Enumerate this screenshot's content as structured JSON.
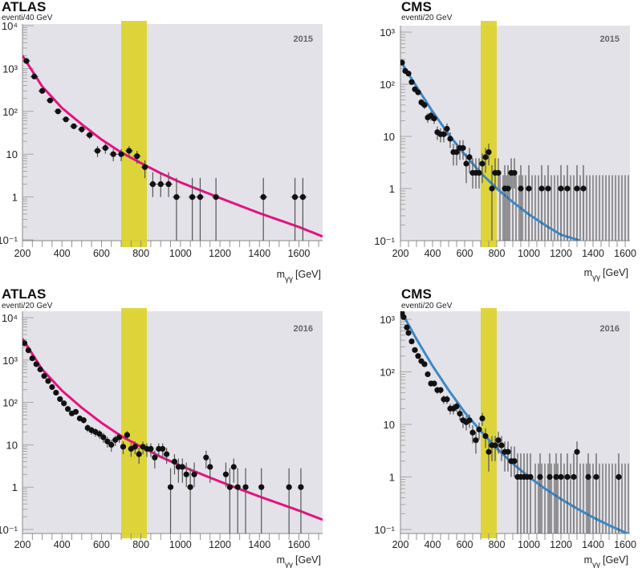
{
  "colors": {
    "plot_bg": "#e3e2e8",
    "signal_band": "#dcd32a",
    "atlas_fit": "#e5127f",
    "cms_fit": "#3a88c9",
    "points": "#111111",
    "error_bars": "#555555"
  },
  "chart_data": [
    {
      "type": "scatter",
      "experiment": "ATLAS",
      "title": "ATLAS",
      "subtitle": "eventi/40 GeV",
      "year_label": "2015",
      "xlabel": "m",
      "xlabel_sub": "γγ",
      "xlabel_unit": "[GeV]",
      "xlim": [
        200,
        1720
      ],
      "ylim": [
        0.1,
        10000
      ],
      "yscale": "log",
      "xticks": [
        200,
        400,
        600,
        800,
        1000,
        1200,
        1400,
        1600
      ],
      "xtick_labels": [
        "200",
        "400",
        "600",
        "800",
        "1000",
        "1200",
        "1400",
        "1600"
      ],
      "yticks": [
        0.1,
        1,
        10,
        100,
        1000,
        10000
      ],
      "ytick_labels": [
        "10⁻¹",
        "1",
        "10",
        "10²",
        "10³",
        "10⁴"
      ],
      "signal_band": [
        700,
        830
      ],
      "fit": {
        "name": "background fit",
        "color": "atlas_fit",
        "x": [
          200,
          300,
          400,
          500,
          600,
          700,
          800,
          900,
          1000,
          1200,
          1400,
          1600,
          1720
        ],
        "y": [
          2000,
          380,
          120,
          50,
          22,
          11,
          6.2,
          3.6,
          2.2,
          0.95,
          0.42,
          0.2,
          0.12
        ]
      },
      "points": {
        "x": [
          220,
          260,
          300,
          340,
          380,
          420,
          460,
          500,
          540,
          580,
          620,
          660,
          700,
          740,
          780,
          820,
          860,
          900,
          940,
          980,
          1060,
          1100,
          1180,
          1420,
          1580,
          1620
        ],
        "y": [
          1500,
          650,
          300,
          180,
          100,
          65,
          45,
          38,
          28,
          12,
          14,
          10,
          10,
          12,
          9,
          5,
          2,
          2,
          2,
          1,
          1,
          1,
          1,
          1,
          1,
          1
        ]
      }
    },
    {
      "type": "scatter",
      "experiment": "CMS",
      "title": "CMS",
      "subtitle": "eventi/20 GeV",
      "year_label": "2015",
      "xlabel": "m",
      "xlabel_sub": "γγ",
      "xlabel_unit": "[GeV]",
      "xlim": [
        200,
        1630
      ],
      "ylim": [
        0.1,
        1000
      ],
      "yscale": "log",
      "xticks": [
        200,
        400,
        600,
        800,
        1000,
        1200,
        1400,
        1600
      ],
      "xtick_labels": [
        "200",
        "400",
        "600",
        "800",
        "1000",
        "1200",
        "1400",
        "1600"
      ],
      "yticks": [
        0.1,
        1,
        10,
        100,
        1000
      ],
      "ytick_labels": [
        "10⁻¹",
        "1",
        "10",
        "10²",
        "10³"
      ],
      "signal_band": [
        700,
        800
      ],
      "fit": {
        "name": "background fit",
        "color": "cms_fit",
        "x": [
          200,
          300,
          400,
          500,
          600,
          700,
          800,
          900,
          1000,
          1100,
          1200,
          1320
        ],
        "y": [
          280,
          90,
          30,
          11,
          4.5,
          2.0,
          1.0,
          0.55,
          0.32,
          0.2,
          0.13,
          0.1
        ]
      },
      "points": {
        "x": [
          210,
          230,
          250,
          270,
          290,
          310,
          330,
          350,
          370,
          390,
          410,
          430,
          450,
          470,
          490,
          510,
          530,
          550,
          570,
          590,
          610,
          630,
          650,
          670,
          690,
          710,
          730,
          750,
          770,
          790,
          810,
          850,
          870,
          890,
          910,
          950,
          1000,
          1080,
          1120,
          1200,
          1240,
          1300,
          1340
        ],
        "y": [
          260,
          180,
          160,
          110,
          80,
          70,
          45,
          40,
          23,
          25,
          22,
          12,
          11,
          11,
          14,
          9,
          5,
          5,
          6,
          6,
          3,
          4,
          2,
          2,
          2,
          3,
          4,
          5,
          1,
          2,
          2,
          1,
          1,
          2,
          2,
          1,
          1,
          1,
          1,
          1,
          1,
          1,
          1
        ]
      }
    },
    {
      "type": "scatter",
      "experiment": "ATLAS",
      "title": "ATLAS",
      "subtitle": "eventi/20 GeV",
      "year_label": "2016",
      "xlabel": "m",
      "xlabel_sub": "γγ",
      "xlabel_unit": "[GeV]",
      "xlim": [
        200,
        1720
      ],
      "ylim": [
        0.1,
        10000
      ],
      "yscale": "log",
      "xticks": [
        200,
        400,
        600,
        800,
        1000,
        1200,
        1400,
        1600
      ],
      "xtick_labels": [
        "200",
        "400",
        "600",
        "800",
        "1000",
        "1200",
        "1400",
        "1600"
      ],
      "yticks": [
        0.1,
        1,
        10,
        100,
        1000,
        10000
      ],
      "ytick_labels": [
        "10⁻¹",
        "1",
        "10",
        "10²",
        "10³",
        "10⁴"
      ],
      "signal_band": [
        700,
        830
      ],
      "fit": {
        "name": "background fit",
        "color": "atlas_fit",
        "x": [
          200,
          300,
          400,
          500,
          600,
          700,
          800,
          900,
          1000,
          1200,
          1400,
          1600,
          1720
        ],
        "y": [
          3200,
          600,
          190,
          75,
          33,
          16,
          9,
          5.2,
          3.2,
          1.35,
          0.6,
          0.28,
          0.17
        ]
      },
      "points": {
        "x": [
          210,
          230,
          250,
          270,
          290,
          310,
          330,
          350,
          370,
          390,
          410,
          430,
          450,
          470,
          490,
          510,
          530,
          550,
          570,
          590,
          610,
          630,
          650,
          670,
          690,
          710,
          730,
          750,
          770,
          790,
          810,
          830,
          850,
          870,
          890,
          910,
          930,
          950,
          970,
          990,
          1010,
          1030,
          1050,
          1070,
          1130,
          1150,
          1230,
          1250,
          1270,
          1290,
          1330,
          1410,
          1550,
          1610
        ],
        "y": [
          2500,
          1700,
          1100,
          800,
          600,
          420,
          320,
          230,
          170,
          120,
          95,
          70,
          55,
          60,
          42,
          38,
          25,
          22,
          20,
          18,
          15,
          12,
          10,
          13,
          15,
          9,
          17,
          8,
          9,
          6,
          9,
          8,
          8,
          5,
          8,
          8,
          6,
          1,
          4,
          3,
          3,
          2,
          1,
          2,
          5,
          3,
          2,
          1,
          3,
          1,
          1,
          1,
          1,
          1
        ]
      }
    },
    {
      "type": "scatter",
      "experiment": "CMS",
      "title": "CMS",
      "subtitle": "eventi/20 GeV",
      "year_label": "2016",
      "xlabel": "m",
      "xlabel_sub": "γγ",
      "xlabel_unit": "[GeV]",
      "xlim": [
        200,
        1630
      ],
      "ylim": [
        0.1,
        1000
      ],
      "yscale": "log",
      "xticks": [
        200,
        400,
        600,
        800,
        1000,
        1200,
        1400,
        1600
      ],
      "xtick_labels": [
        "200",
        "400",
        "600",
        "800",
        "1000",
        "1200",
        "1400",
        "1600"
      ],
      "yticks": [
        0.1,
        1,
        10,
        100,
        1000
      ],
      "ytick_labels": [
        "10⁻¹",
        "1",
        "10",
        "10²",
        "10³"
      ],
      "signal_band": [
        700,
        800
      ],
      "fit": {
        "name": "background fit",
        "color": "cms_fit",
        "x": [
          200,
          300,
          400,
          500,
          600,
          700,
          800,
          900,
          1000,
          1100,
          1200,
          1300,
          1400,
          1500,
          1630
        ],
        "y": [
          1500,
          420,
          130,
          45,
          17,
          7.5,
          3.5,
          1.8,
          1.0,
          0.6,
          0.38,
          0.25,
          0.17,
          0.12,
          0.08
        ]
      },
      "points": {
        "x": [
          210,
          220,
          240,
          250,
          270,
          290,
          310,
          330,
          350,
          370,
          390,
          410,
          430,
          450,
          470,
          490,
          510,
          530,
          550,
          570,
          590,
          610,
          630,
          650,
          670,
          690,
          710,
          730,
          750,
          770,
          790,
          810,
          830,
          850,
          870,
          890,
          910,
          930,
          950,
          970,
          990,
          1010,
          1070,
          1130,
          1170,
          1200,
          1240,
          1280,
          1300,
          1370,
          1420,
          1560
        ],
        "y": [
          1300,
          1100,
          700,
          550,
          380,
          260,
          200,
          160,
          140,
          90,
          60,
          60,
          45,
          45,
          30,
          30,
          20,
          20,
          22,
          16,
          12,
          11,
          12,
          7,
          5,
          8,
          13,
          6,
          3,
          4,
          4,
          5,
          4,
          3,
          3,
          2,
          2,
          1,
          1,
          1,
          1,
          1,
          1,
          1,
          1,
          1,
          1,
          1,
          3,
          1,
          1,
          1
        ]
      }
    }
  ]
}
